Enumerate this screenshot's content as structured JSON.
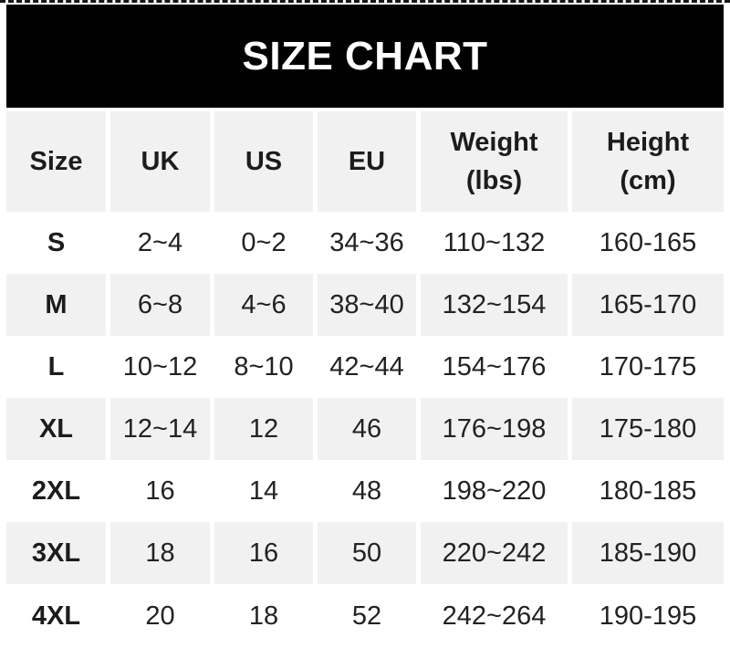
{
  "title": "SIZE CHART",
  "colors": {
    "banner_bg": "#010101",
    "banner_text": "#ffffff",
    "row_alt_bg": "#f1f1f2",
    "row_bg": "#ffffff",
    "text": "#1c1c1c",
    "page_bg": "#ffffff"
  },
  "chart_data": {
    "type": "table",
    "title": "SIZE CHART",
    "columns": [
      [
        "Size"
      ],
      [
        "UK"
      ],
      [
        "US"
      ],
      [
        "EU"
      ],
      [
        "Weight",
        "(lbs)"
      ],
      [
        "Height",
        "(cm)"
      ]
    ],
    "rows": [
      [
        "S",
        "2~4",
        "0~2",
        "34~36",
        "110~132",
        "160-165"
      ],
      [
        "M",
        "6~8",
        "4~6",
        "38~40",
        "132~154",
        "165-170"
      ],
      [
        "L",
        "10~12",
        "8~10",
        "42~44",
        "154~176",
        "170-175"
      ],
      [
        "XL",
        "12~14",
        "12",
        "46",
        "176~198",
        "175-180"
      ],
      [
        "2XL",
        "16",
        "14",
        "48",
        "198~220",
        "180-185"
      ],
      [
        "3XL",
        "18",
        "16",
        "50",
        "220~242",
        "185-190"
      ],
      [
        "4XL",
        "20",
        "18",
        "52",
        "242~264",
        "190-195"
      ]
    ]
  }
}
